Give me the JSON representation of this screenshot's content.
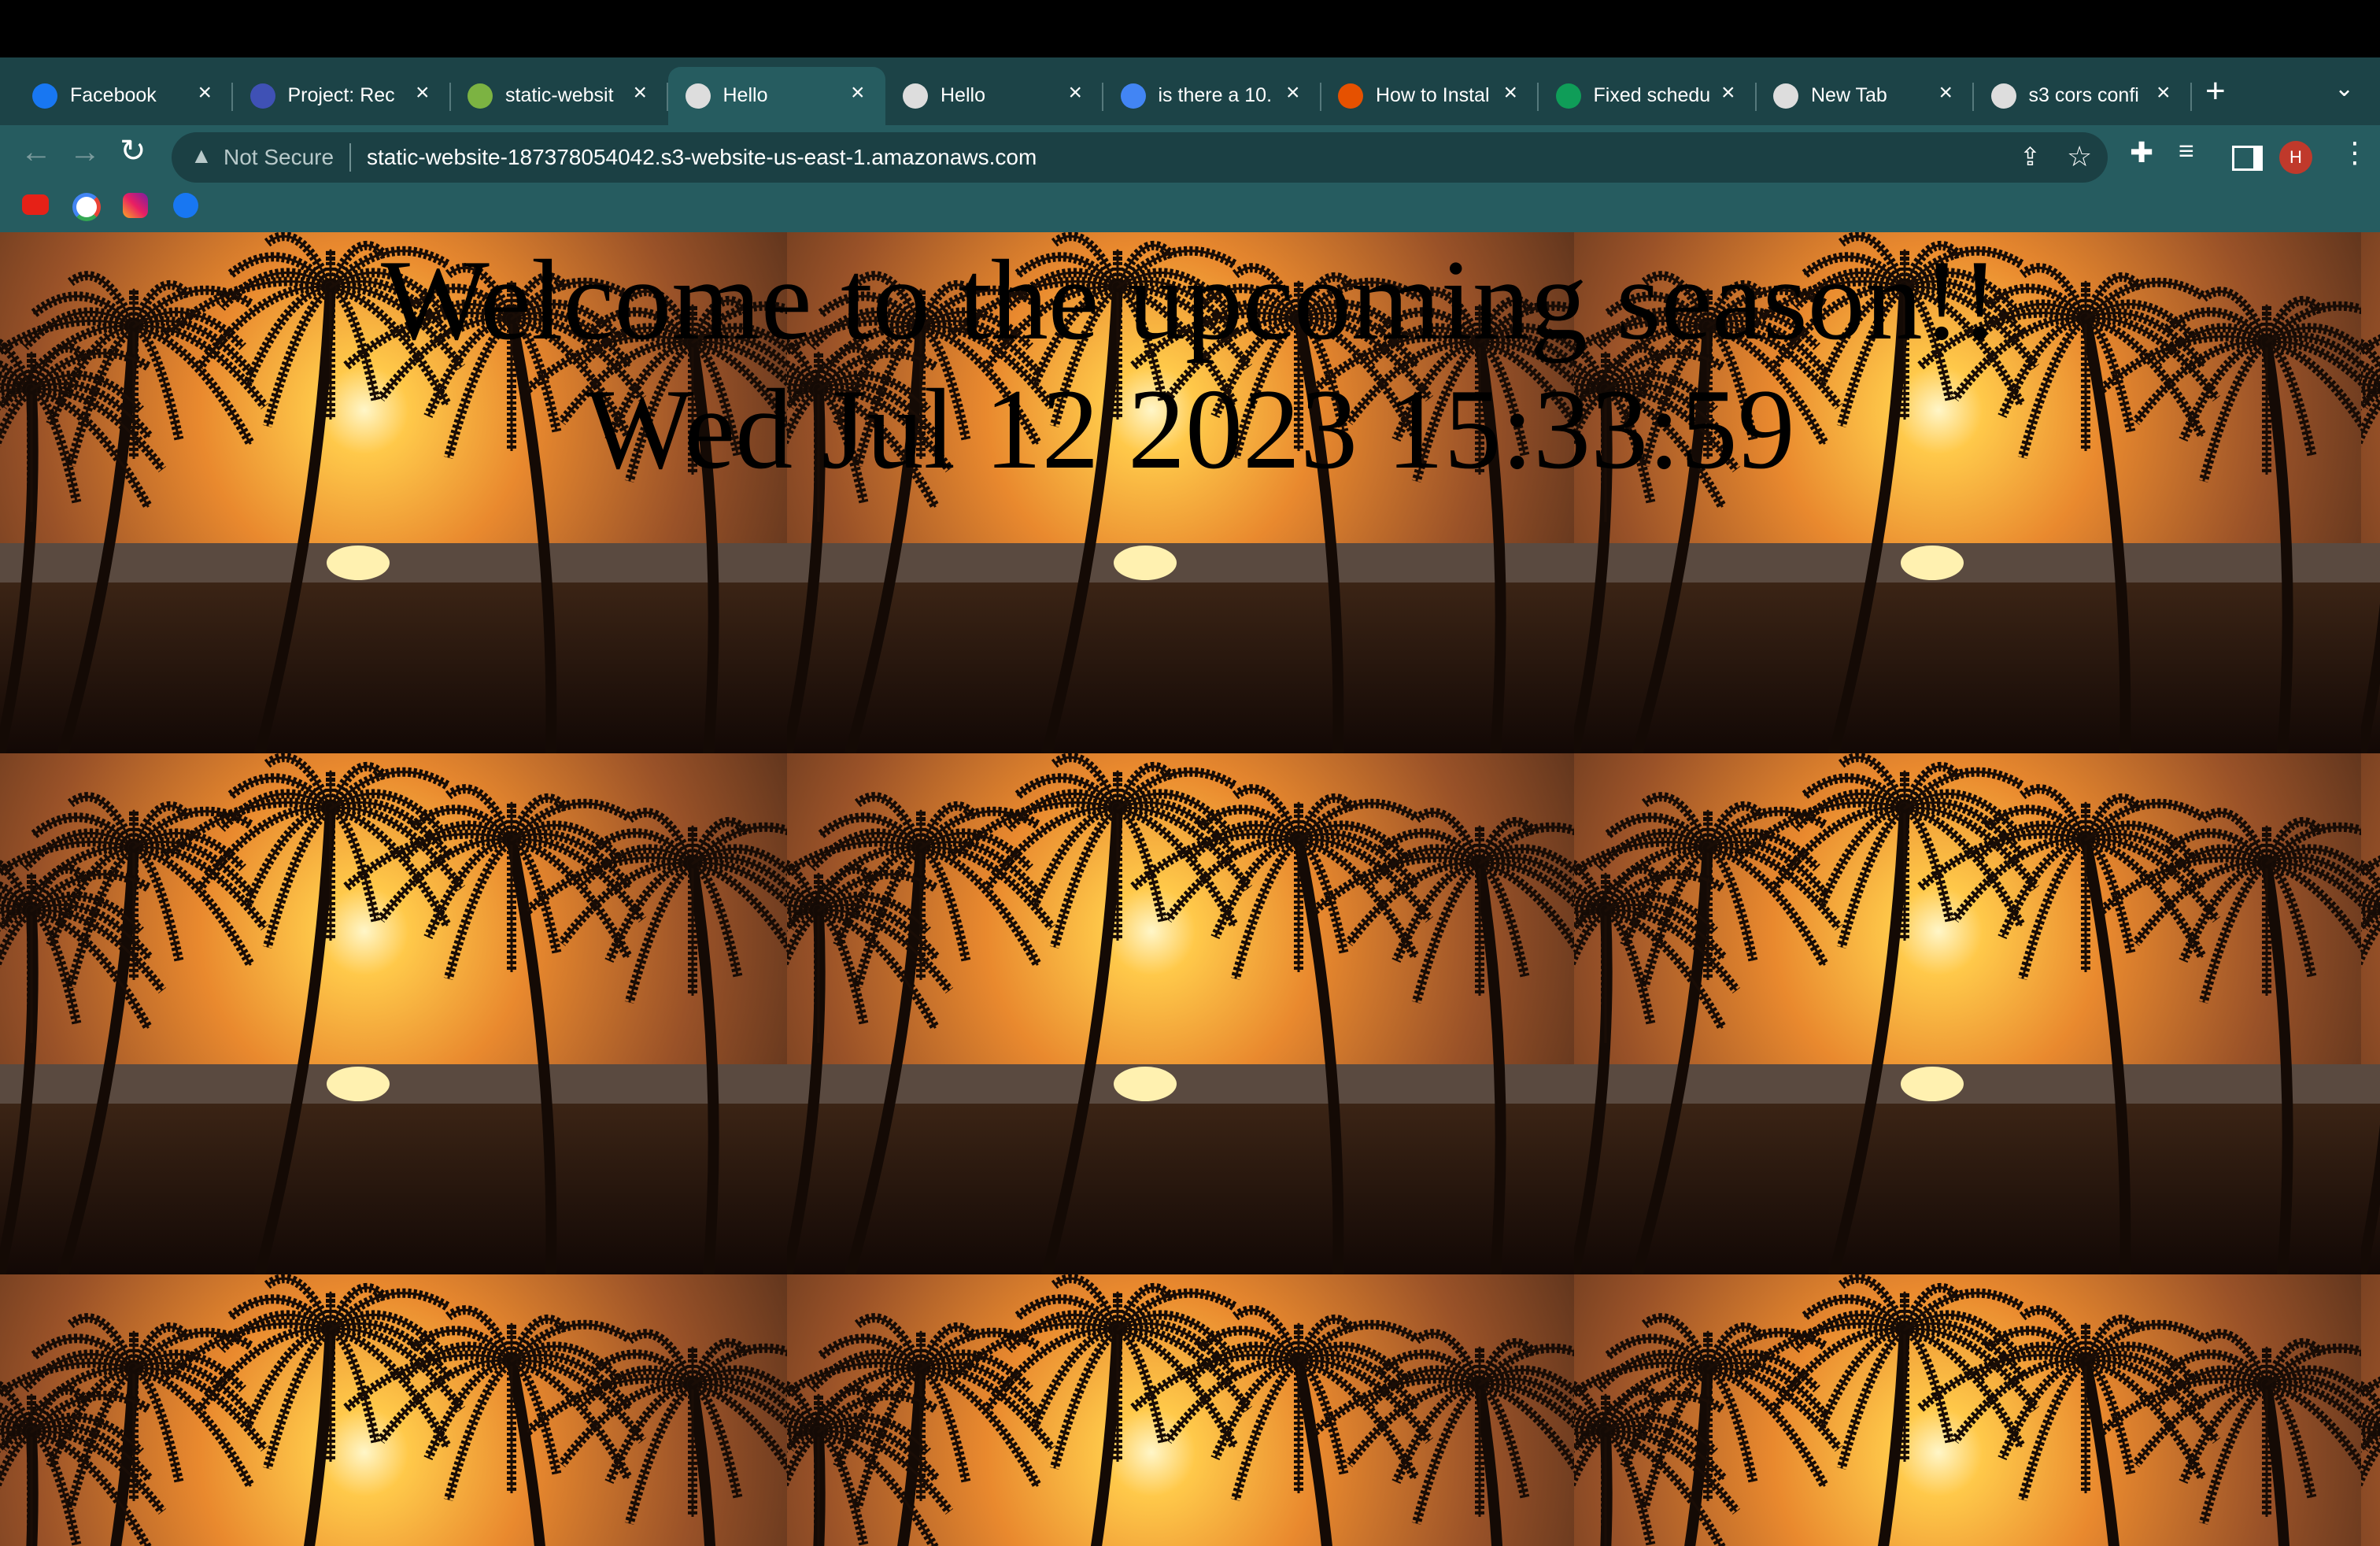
{
  "browser": {
    "tabs": [
      {
        "title": "Facebook"
      },
      {
        "title": "Project: Rec"
      },
      {
        "title": "static-websit"
      },
      {
        "title": "Hello"
      },
      {
        "title": "Hello"
      },
      {
        "title": "is there a 10."
      },
      {
        "title": "How to Instal"
      },
      {
        "title": "Fixed schedu"
      },
      {
        "title": "New Tab"
      },
      {
        "title": "s3 cors confi"
      }
    ],
    "active_tab": 3,
    "security": "Not Secure",
    "url": "static-website-187378054042.s3-website-us-east-1.amazonaws.com",
    "profile": "H"
  },
  "page": {
    "heading": "Welcome to the upcoming season!!",
    "datetime": "Wed Jul 12 2023 15:33:59"
  }
}
